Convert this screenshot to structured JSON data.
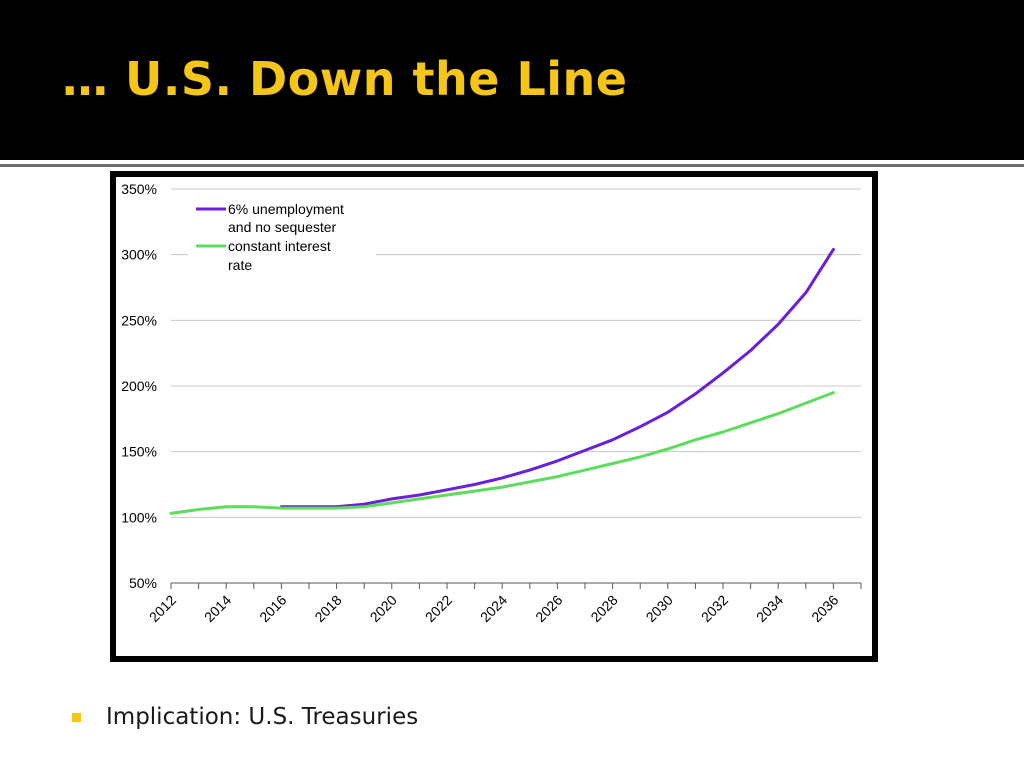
{
  "slide": {
    "title": "… U.S. Down the Line",
    "bullet": "Implication:  U.S. Treasuries",
    "title_color": "#f5c518",
    "bullet_color": "#f5c518"
  },
  "chart_data": {
    "type": "line",
    "title": "",
    "xlabel": "",
    "ylabel": "",
    "x": [
      2012,
      2013,
      2014,
      2015,
      2016,
      2017,
      2018,
      2019,
      2020,
      2021,
      2022,
      2023,
      2024,
      2025,
      2026,
      2027,
      2028,
      2029,
      2030,
      2031,
      2032,
      2033,
      2034,
      2035,
      2036,
      2037
    ],
    "x_tick_labels": [
      "2012",
      "2014",
      "2016",
      "2018",
      "2020",
      "2022",
      "2024",
      "2026",
      "2028",
      "2030",
      "2032",
      "2034",
      "2036"
    ],
    "x_ticks": [
      2012,
      2014,
      2016,
      2018,
      2020,
      2022,
      2024,
      2026,
      2028,
      2030,
      2032,
      2034,
      2036
    ],
    "ylim": [
      50,
      350
    ],
    "y_ticks": [
      50,
      100,
      150,
      200,
      250,
      300,
      350
    ],
    "y_tick_labels": [
      "50%",
      "100%",
      "150%",
      "200%",
      "250%",
      "300%",
      "350%"
    ],
    "grid": true,
    "legend_position": "top-left",
    "series": [
      {
        "name": "6% unemployment and no sequester",
        "legend_lines": [
          "6% unemployment",
          "and no sequester"
        ],
        "color": "#6a1fd8",
        "x": [
          2016,
          2017,
          2018,
          2019,
          2020,
          2021,
          2022,
          2023,
          2024,
          2025,
          2026,
          2027,
          2028,
          2029,
          2030,
          2031,
          2032,
          2033,
          2034,
          2035,
          2036,
          2037
        ],
        "values": [
          108,
          108,
          108,
          110,
          114,
          117,
          121,
          125,
          130,
          136,
          143,
          151,
          159,
          169,
          180,
          194,
          210,
          227,
          247,
          271,
          304,
          null
        ]
      },
      {
        "name": "constant interest rate",
        "legend_lines": [
          "constant interest",
          "rate"
        ],
        "color": "#5cdd5c",
        "x": [
          2012,
          2013,
          2014,
          2015,
          2016,
          2017,
          2018,
          2019,
          2020,
          2021,
          2022,
          2023,
          2024,
          2025,
          2026,
          2027,
          2028,
          2029,
          2030,
          2031,
          2032,
          2033,
          2034,
          2035,
          2036,
          2037
        ],
        "values": [
          103,
          106,
          108,
          108,
          107,
          107,
          107,
          108,
          111,
          114,
          117,
          120,
          123,
          127,
          131,
          136,
          141,
          146,
          152,
          159,
          165,
          172,
          179,
          187,
          195,
          null
        ]
      }
    ]
  }
}
